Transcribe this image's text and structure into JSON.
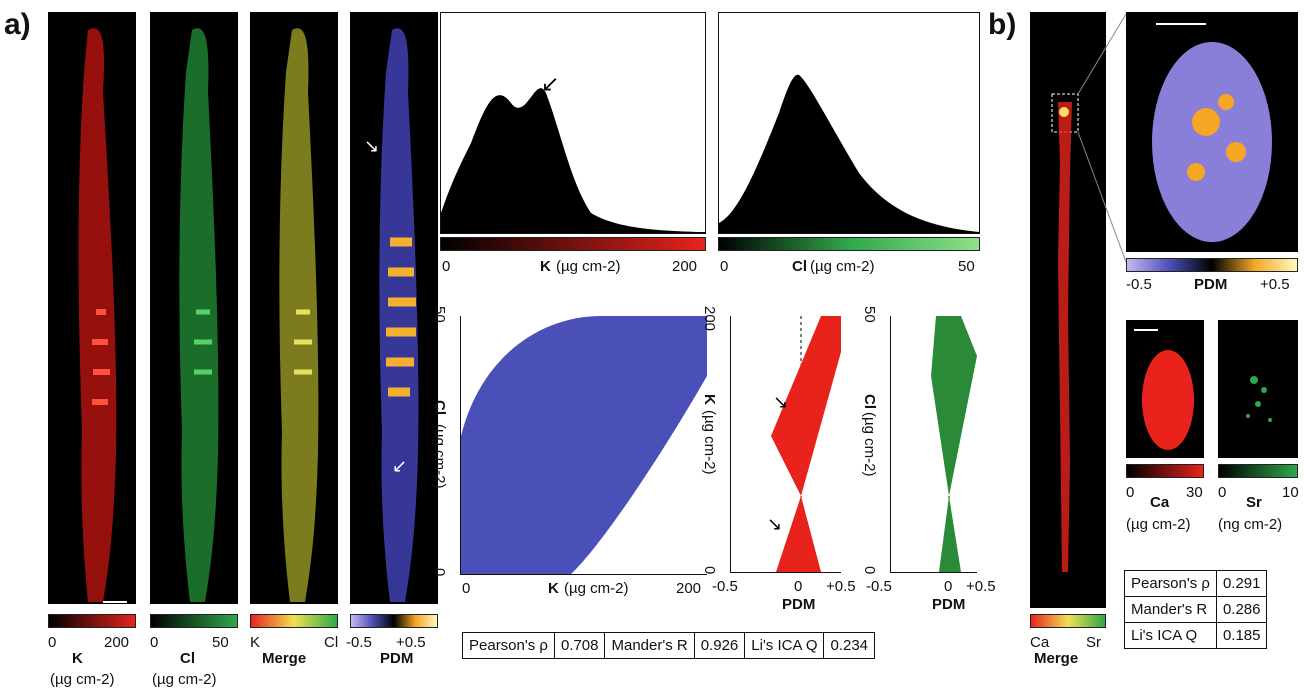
{
  "panel_a": {
    "letter": "a)",
    "maps": [
      {
        "cbar_min": "0",
        "cbar_max": "200",
        "label": "K",
        "unit": "(µg cm-2)"
      },
      {
        "cbar_min": "0",
        "cbar_max": "50",
        "label": "Cl",
        "unit": "(µg cm-2)"
      },
      {
        "cbar_min": "K",
        "cbar_max": "Cl",
        "label": "Merge",
        "unit": ""
      },
      {
        "cbar_min": "-0.5",
        "cbar_max": "+0.5",
        "label": "PDM",
        "unit": ""
      }
    ],
    "colors": {
      "K": "#e8231c",
      "Cl": "#2fa84a",
      "scatter": "#4b4fb8",
      "pdm_neg": "#6a5fd0",
      "pdm_pos": "#f5a623"
    },
    "hist_k": {
      "axis_min": "0",
      "axis_max": "200",
      "label": "K",
      "unit": "(µg cm-2)"
    },
    "hist_cl": {
      "axis_min": "0",
      "axis_max": "50",
      "label": "Cl",
      "unit": "(µg cm-2)"
    },
    "scatter": {
      "xlabel": "K",
      "xunit": "(µg cm-2)",
      "ylabel": "Cl",
      "yunit": "(µg cm-2)",
      "x0": "0",
      "x1": "200",
      "y0": "0",
      "y1": "50"
    },
    "pdm_k": {
      "xlabel": "PDM",
      "ylabel": "K",
      "yunit": "(µg cm-2)",
      "xticks": [
        "-0.5",
        "0",
        "+0.5"
      ],
      "y0": "0",
      "y1": "200"
    },
    "pdm_cl": {
      "xlabel": "PDM",
      "ylabel": "Cl",
      "yunit": "(µg cm-2)",
      "xticks": [
        "-0.5",
        "0",
        "+0.5"
      ],
      "y0": "0",
      "y1": "50"
    },
    "stats": [
      {
        "name": "Pearson's ρ",
        "value": "0.708"
      },
      {
        "name": "Mander's R",
        "value": "0.926"
      },
      {
        "name": "Li's ICA Q",
        "value": "0.234"
      }
    ]
  },
  "panel_b": {
    "letter": "b)",
    "merge_min": "Ca",
    "merge_max": "Sr",
    "merge_label": "Merge",
    "pdm_min": "-0.5",
    "pdm_label": "PDM",
    "pdm_max": "+0.5",
    "ca": {
      "min": "0",
      "max": "30",
      "label": "Ca",
      "unit": "(µg cm-2)"
    },
    "sr": {
      "min": "0",
      "max": "10",
      "label": "Sr",
      "unit": "(ng cm-2)"
    },
    "stats": [
      {
        "name": "Pearson's ρ",
        "value": "0.291"
      },
      {
        "name": "Mander's R",
        "value": "0.286"
      },
      {
        "name": "Li's ICA Q",
        "value": "0.185"
      }
    ]
  }
}
